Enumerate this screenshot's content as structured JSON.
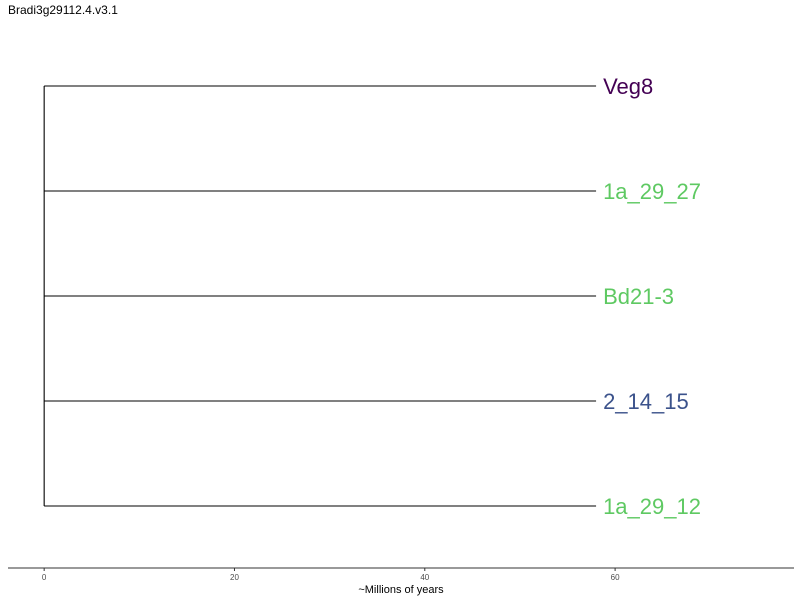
{
  "title": "Bradi3g29112.4.v3.1",
  "xaxis": {
    "label": "~Millions of years",
    "ticks": [
      0,
      20,
      40,
      60
    ],
    "range": [
      -3.8,
      78.8
    ]
  },
  "tree": {
    "root_x": 0,
    "tips": [
      {
        "label": "Veg8",
        "x": 58,
        "color": "#440154"
      },
      {
        "label": "1a_29_27",
        "x": 58,
        "color": "#5ec962"
      },
      {
        "label": "Bd21-3",
        "x": 58,
        "color": "#5ec962"
      },
      {
        "label": "2_14_15",
        "x": 58,
        "color": "#3b528b"
      },
      {
        "label": "1a_29_12",
        "x": 58,
        "color": "#5ec962"
      }
    ]
  }
}
